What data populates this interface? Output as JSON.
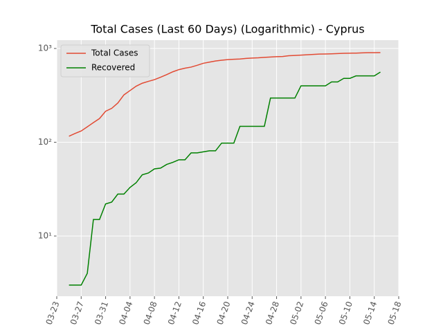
{
  "chart_data": {
    "type": "line",
    "title": "Total Cases (Last 60 Days) (Logarithmic) - Cyprus",
    "x": [
      "03-25",
      "03-26",
      "03-27",
      "03-28",
      "03-29",
      "03-30",
      "03-31",
      "04-01",
      "04-02",
      "04-03",
      "04-04",
      "04-05",
      "04-06",
      "04-07",
      "04-08",
      "04-09",
      "04-10",
      "04-11",
      "04-12",
      "04-13",
      "04-14",
      "04-15",
      "04-16",
      "04-17",
      "04-18",
      "04-19",
      "04-20",
      "04-21",
      "04-22",
      "04-23",
      "04-24",
      "04-25",
      "04-26",
      "04-27",
      "04-28",
      "04-29",
      "04-30",
      "05-01",
      "05-02",
      "05-03",
      "05-04",
      "05-05",
      "05-06",
      "05-07",
      "05-08",
      "05-09",
      "05-10",
      "05-11",
      "05-12",
      "05-13",
      "05-14",
      "05-15"
    ],
    "series": [
      {
        "name": "Total Cases",
        "color": "#E24A33",
        "values": [
          116,
          124,
          132,
          146,
          162,
          179,
          214,
          230,
          262,
          320,
          356,
          396,
          426,
          446,
          465,
          494,
          526,
          564,
          595,
          616,
          633,
          662,
          695,
          715,
          735,
          750,
          761,
          767,
          772,
          784,
          790,
          795,
          804,
          810,
          817,
          822,
          837,
          843,
          850,
          857,
          864,
          872,
          874,
          878,
          883,
          889,
          891,
          892,
          898,
          901,
          902,
          903
        ]
      },
      {
        "name": "Recovered",
        "color": "#008000",
        "values": [
          3,
          3,
          3,
          4,
          15,
          15,
          22,
          23,
          28,
          28,
          33,
          37,
          45,
          47,
          52,
          53,
          58,
          61,
          65,
          65,
          77,
          77,
          79,
          81,
          81,
          98,
          98,
          98,
          148,
          148,
          148,
          148,
          148,
          296,
          296,
          296,
          296,
          296,
          400,
          400,
          400,
          400,
          400,
          440,
          440,
          480,
          480,
          510,
          510,
          510,
          510,
          560
        ]
      }
    ],
    "xlim": [
      "03-23",
      "05-18"
    ],
    "xticks": [
      "03-23",
      "03-27",
      "03-31",
      "04-04",
      "04-08",
      "04-12",
      "04-16",
      "04-20",
      "04-24",
      "04-28",
      "05-02",
      "05-06",
      "05-10",
      "05-14",
      "05-18"
    ],
    "ylim": [
      2.28,
      1227
    ],
    "log_y": true,
    "yticks": [
      {
        "value": 10,
        "label": "10¹"
      },
      {
        "value": 100,
        "label": "10²"
      },
      {
        "value": 1000,
        "label": "10³"
      }
    ],
    "grid": true,
    "legend": "upper left"
  }
}
